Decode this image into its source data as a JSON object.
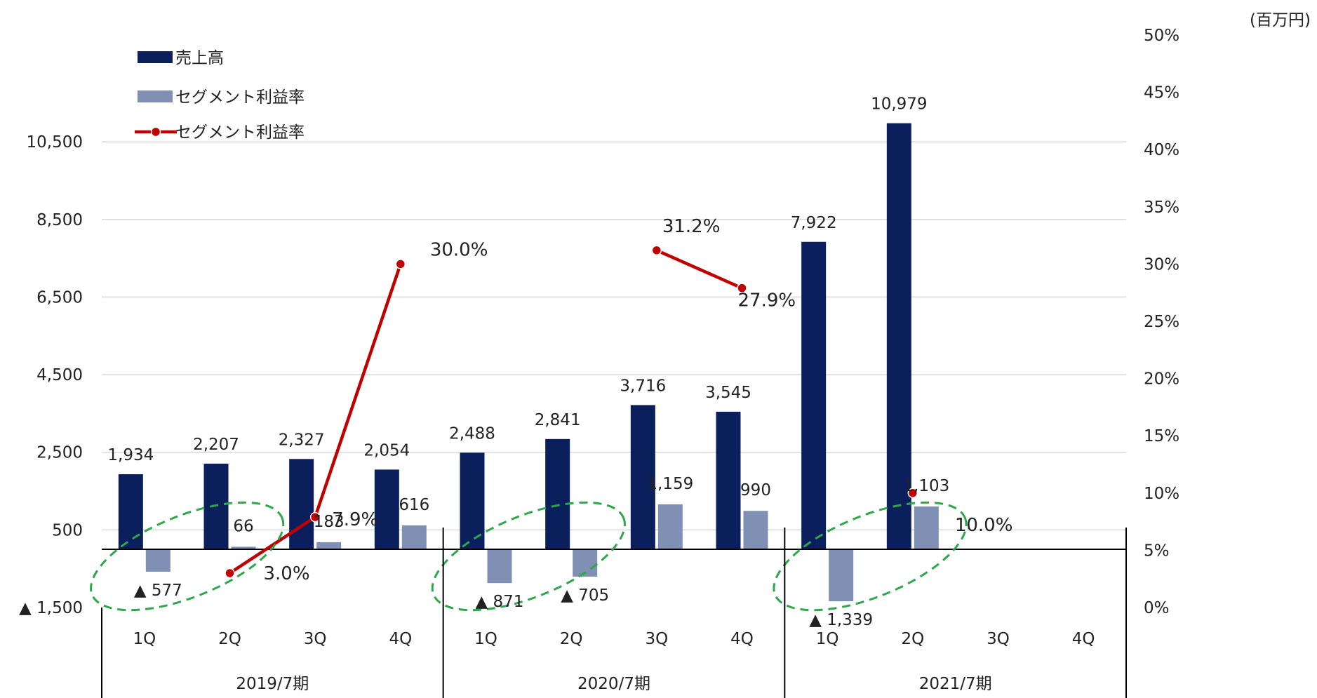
{
  "chart_data": {
    "type": "bar",
    "unit_label": "(百万円)",
    "left_axis": {
      "ticks": [
        -1500,
        500,
        2500,
        4500,
        6500,
        8500,
        10500
      ],
      "tick_labels": [
        "▲ 1,500",
        "500",
        "2,500",
        "4,500",
        "6,500",
        "8,500",
        "10,500"
      ],
      "range": [
        -1500,
        13250
      ]
    },
    "right_axis": {
      "ticks": [
        0,
        5,
        10,
        15,
        20,
        25,
        30,
        35,
        40,
        45,
        50
      ],
      "tick_labels": [
        "0%",
        "5%",
        "10%",
        "15%",
        "20%",
        "25%",
        "30%",
        "35%",
        "40%",
        "45%",
        "50%"
      ],
      "range": [
        0,
        50
      ]
    },
    "groups": [
      {
        "label": "2019/7期",
        "quarters": [
          "1Q",
          "2Q",
          "3Q",
          "4Q"
        ]
      },
      {
        "label": "2020/7期",
        "quarters": [
          "1Q",
          "2Q",
          "3Q",
          "4Q"
        ]
      },
      {
        "label": "2021/7期",
        "quarters": [
          "1Q",
          "2Q",
          "3Q",
          "4Q"
        ]
      }
    ],
    "series": [
      {
        "name": "売上高",
        "kind": "bar",
        "color": "#0b1f5c",
        "values": [
          1934,
          2207,
          2327,
          2054,
          2488,
          2841,
          3716,
          3545,
          7922,
          10979,
          null,
          null
        ],
        "labels": [
          "1,934",
          "2,207",
          "2,327",
          "2,054",
          "2,488",
          "2,841",
          "3,716",
          "3,545",
          "7,922",
          "10,979",
          "",
          ""
        ]
      },
      {
        "name": "セグメント利益率",
        "kind": "bar",
        "color": "#8090b4",
        "values": [
          -577,
          66,
          183,
          616,
          -871,
          -705,
          1159,
          990,
          -1339,
          1103,
          null,
          null
        ],
        "labels": [
          "▲ 577",
          "66",
          "183",
          "616",
          "▲ 871",
          "▲ 705",
          "1,159",
          "990",
          "▲ 1,339",
          "1,103",
          "",
          ""
        ]
      },
      {
        "name": "セグメント利益率",
        "kind": "line",
        "color": "#c00000",
        "values": [
          null,
          3.0,
          7.9,
          30.0,
          null,
          null,
          31.2,
          27.9,
          null,
          10.0,
          null,
          null
        ],
        "labels": [
          "",
          "3.0%",
          "7.9%",
          "30.0%",
          "",
          "",
          "31.2%",
          "27.9%",
          "",
          "10.0%",
          "",
          ""
        ]
      }
    ],
    "legend_position": "top-left",
    "grid": true,
    "highlight_ellipses": [
      {
        "quarters": [
          0,
          1
        ],
        "style": "dashed",
        "color": "#2ca84a"
      },
      {
        "quarters": [
          4,
          5
        ],
        "style": "dashed",
        "color": "#2ca84a"
      },
      {
        "quarters": [
          8,
          9
        ],
        "style": "dashed",
        "color": "#2ca84a"
      }
    ]
  }
}
